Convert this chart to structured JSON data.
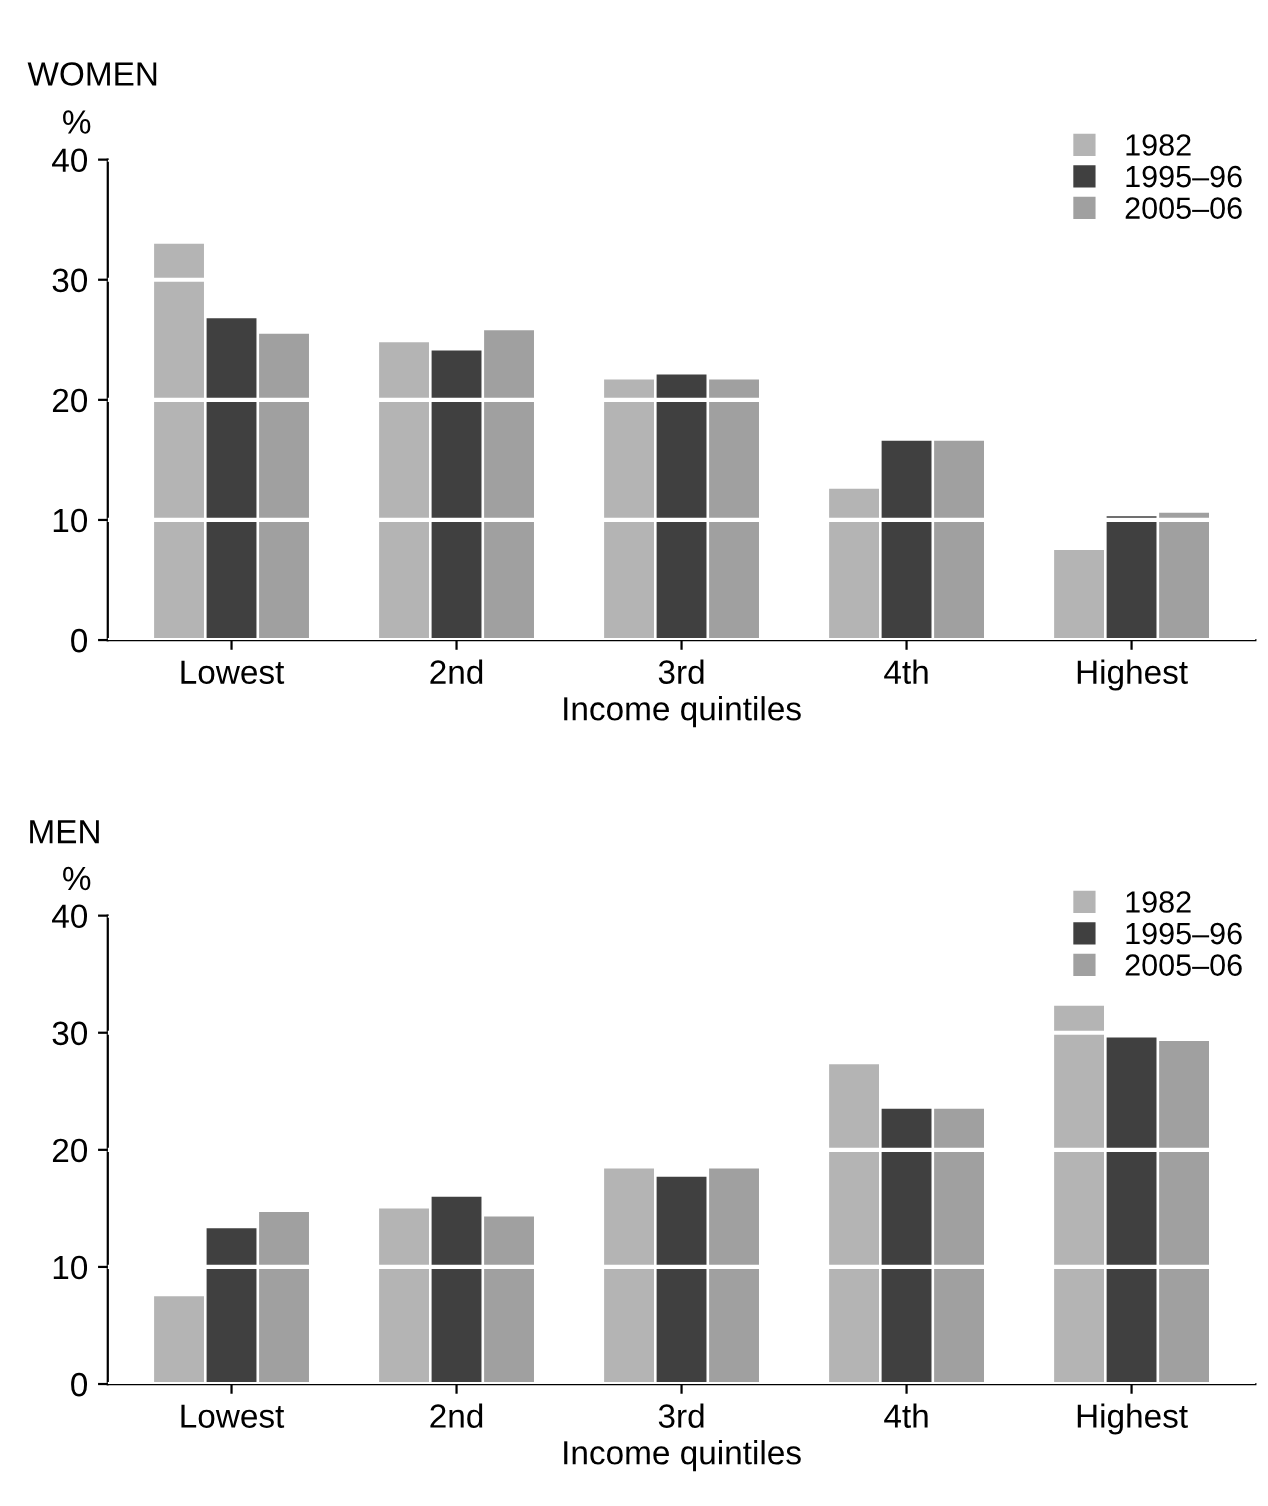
{
  "chart_data": [
    {
      "type": "bar",
      "title": "WOMEN",
      "ylabel": "%",
      "xlabel": "Income quintiles",
      "categories": [
        "Lowest",
        "2nd",
        "3rd",
        "4th",
        "Highest"
      ],
      "series": [
        {
          "name": "1982",
          "color": "#b4b4b4",
          "values": [
            33.0,
            24.8,
            21.7,
            12.6,
            7.5
          ]
        },
        {
          "name": "1995–96",
          "color": "#404040",
          "values": [
            26.8,
            24.1,
            22.1,
            16.6,
            10.3
          ]
        },
        {
          "name": "2005–06",
          "color": "#a0a0a0",
          "values": [
            25.5,
            25.8,
            21.7,
            16.6,
            10.6
          ]
        }
      ],
      "ylim": [
        0,
        40
      ],
      "yticks": [
        0,
        10,
        20,
        30,
        40
      ],
      "grid": "y",
      "legend": "top right"
    },
    {
      "type": "bar",
      "title": "MEN",
      "ylabel": "%",
      "xlabel": "Income quintiles",
      "categories": [
        "Lowest",
        "2nd",
        "3rd",
        "4th",
        "Highest"
      ],
      "series": [
        {
          "name": "1982",
          "color": "#b4b4b4",
          "values": [
            7.5,
            15.0,
            18.4,
            27.3,
            32.3
          ]
        },
        {
          "name": "1995–96",
          "color": "#404040",
          "values": [
            13.3,
            16.0,
            17.7,
            23.5,
            29.6
          ]
        },
        {
          "name": "2005–06",
          "color": "#a0a0a0",
          "values": [
            14.7,
            14.3,
            18.4,
            23.5,
            29.3
          ]
        }
      ],
      "ylim": [
        0,
        40
      ],
      "yticks": [
        0,
        10,
        20,
        30,
        40
      ],
      "grid": "y",
      "legend": "top right"
    }
  ]
}
